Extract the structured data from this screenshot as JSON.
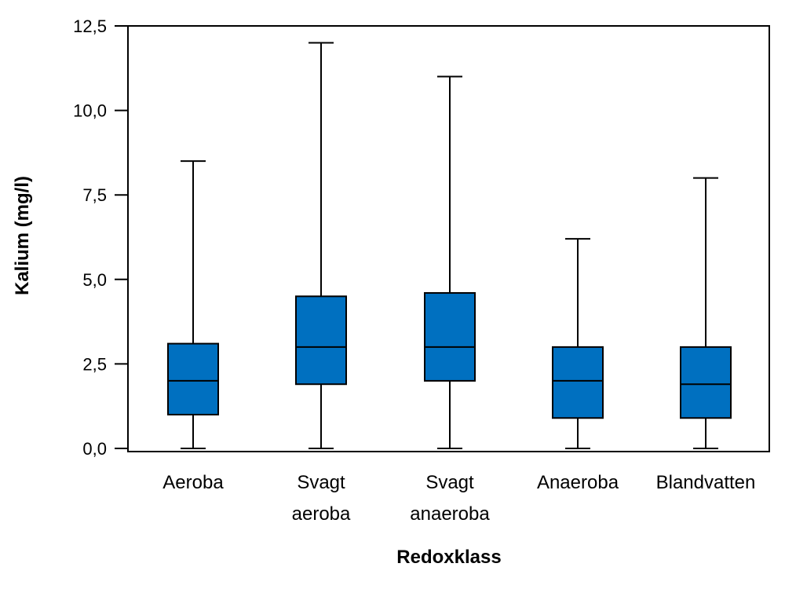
{
  "chart_data": {
    "type": "box",
    "title": "",
    "xlabel": "Redoxklass",
    "ylabel": "Kalium (mg/l)",
    "ylim": [
      0,
      12.5
    ],
    "yticks": [
      0,
      2.5,
      5,
      7.5,
      10,
      12.5
    ],
    "ytick_labels": [
      "0,0",
      "2,5",
      "5,0",
      "7,5",
      "10,0",
      "12,5"
    ],
    "box_color": "#0070C0",
    "categories": [
      {
        "label_lines": [
          "Aeroba"
        ],
        "min": 0.0,
        "q1": 1.0,
        "median": 2.0,
        "q3": 3.1,
        "max": 8.5
      },
      {
        "label_lines": [
          "Svagt",
          "aeroba"
        ],
        "min": 0.0,
        "q1": 1.9,
        "median": 3.0,
        "q3": 4.5,
        "max": 12.0
      },
      {
        "label_lines": [
          "Svagt",
          "anaeroba"
        ],
        "min": 0.0,
        "q1": 2.0,
        "median": 3.0,
        "q3": 4.6,
        "max": 11.0
      },
      {
        "label_lines": [
          "Anaeroba"
        ],
        "min": 0.0,
        "q1": 0.9,
        "median": 2.0,
        "q3": 3.0,
        "max": 6.2
      },
      {
        "label_lines": [
          "Blandvatten"
        ],
        "min": 0.0,
        "q1": 0.9,
        "median": 1.9,
        "q3": 3.0,
        "max": 8.0
      }
    ]
  }
}
